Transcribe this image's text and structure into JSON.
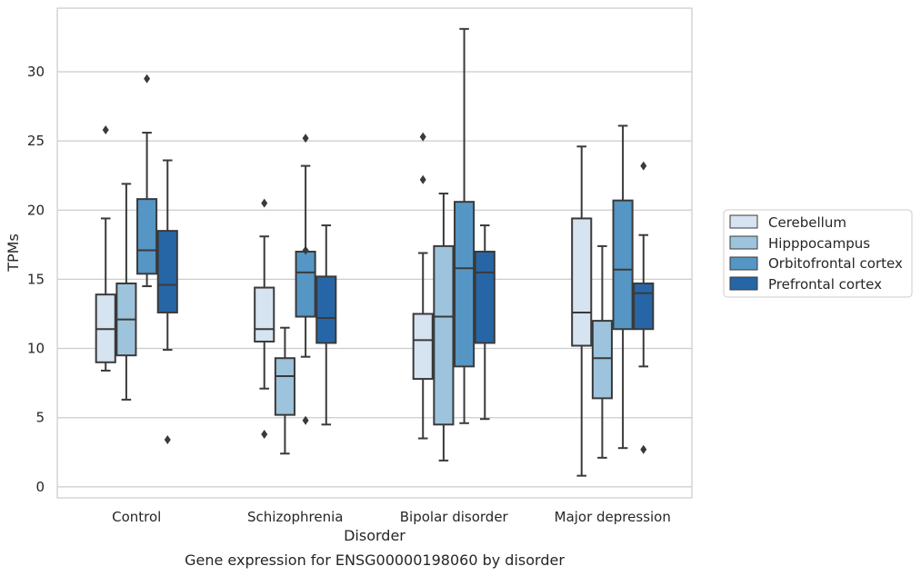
{
  "chart_data": {
    "type": "box",
    "title": "Gene expression for ENSG00000198060 by disorder",
    "xlabel": "Disorder",
    "ylabel": "TPMs",
    "ylim": [
      -0.8,
      34.6
    ],
    "yticks": [
      0,
      5,
      10,
      15,
      20,
      25,
      30
    ],
    "grid": true,
    "legend_position": "right",
    "categories": [
      "Control",
      "Schizophrenia",
      "Bipolar disorder",
      "Major depression"
    ],
    "series": [
      {
        "name": "Cerebellum",
        "color": "#d6e3f0",
        "boxes": [
          {
            "whisker_low": 8.4,
            "q1": 9.0,
            "median": 11.4,
            "q3": 13.9,
            "whisker_high": 19.4,
            "outliers": [
              25.8
            ]
          },
          {
            "whisker_low": 7.1,
            "q1": 10.5,
            "median": 11.4,
            "q3": 14.4,
            "whisker_high": 18.1,
            "outliers": [
              3.8,
              20.5
            ]
          },
          {
            "whisker_low": 3.5,
            "q1": 7.8,
            "median": 10.6,
            "q3": 12.5,
            "whisker_high": 16.9,
            "outliers": [
              22.2,
              25.3
            ]
          },
          {
            "whisker_low": 0.8,
            "q1": 10.2,
            "median": 12.6,
            "q3": 19.4,
            "whisker_high": 24.6,
            "outliers": []
          }
        ]
      },
      {
        "name": "Hipppocampus",
        "color": "#9dc4dc",
        "boxes": [
          {
            "whisker_low": 6.3,
            "q1": 9.5,
            "median": 12.1,
            "q3": 14.7,
            "whisker_high": 21.9,
            "outliers": []
          },
          {
            "whisker_low": 2.4,
            "q1": 5.2,
            "median": 8.0,
            "q3": 9.3,
            "whisker_high": 11.5,
            "outliers": []
          },
          {
            "whisker_low": 1.9,
            "q1": 4.5,
            "median": 12.3,
            "q3": 17.4,
            "whisker_high": 21.2,
            "outliers": []
          },
          {
            "whisker_low": 2.1,
            "q1": 6.4,
            "median": 9.3,
            "q3": 12.0,
            "whisker_high": 17.4,
            "outliers": []
          }
        ]
      },
      {
        "name": "Orbitofrontal cortex",
        "color": "#5596c4",
        "boxes": [
          {
            "whisker_low": 14.5,
            "q1": 15.4,
            "median": 17.1,
            "q3": 20.8,
            "whisker_high": 25.6,
            "outliers": [
              29.5
            ]
          },
          {
            "whisker_low": 9.4,
            "q1": 12.3,
            "median": 15.5,
            "q3": 17.0,
            "whisker_high": 23.2,
            "outliers": [
              4.8,
              17.1,
              25.2
            ]
          },
          {
            "whisker_low": 4.6,
            "q1": 8.7,
            "median": 15.8,
            "q3": 20.6,
            "whisker_high": 33.1,
            "outliers": []
          },
          {
            "whisker_low": 2.8,
            "q1": 11.4,
            "median": 15.7,
            "q3": 20.7,
            "whisker_high": 26.1,
            "outliers": []
          }
        ]
      },
      {
        "name": "Prefrontal cortex",
        "color": "#2766a6",
        "boxes": [
          {
            "whisker_low": 9.9,
            "q1": 12.6,
            "median": 14.6,
            "q3": 18.5,
            "whisker_high": 23.6,
            "outliers": [
              3.4
            ]
          },
          {
            "whisker_low": 4.5,
            "q1": 10.4,
            "median": 12.2,
            "q3": 15.2,
            "whisker_high": 18.9,
            "outliers": []
          },
          {
            "whisker_low": 4.9,
            "q1": 10.4,
            "median": 15.5,
            "q3": 17.0,
            "whisker_high": 18.9,
            "outliers": []
          },
          {
            "whisker_low": 8.7,
            "q1": 11.4,
            "median": 14.0,
            "q3": 14.7,
            "whisker_high": 18.2,
            "outliers": [
              2.7,
              23.2
            ]
          }
        ]
      }
    ]
  }
}
